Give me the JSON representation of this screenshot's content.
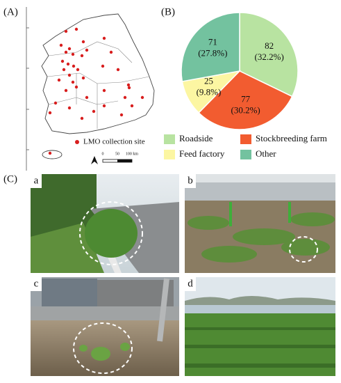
{
  "panels": {
    "a": "(A)",
    "b": "(B)",
    "c": "(C)"
  },
  "map": {
    "legend": "LMO collection site",
    "scale": [
      "0",
      "50",
      "100 km"
    ]
  },
  "chart_data": {
    "type": "pie",
    "categories": [
      "Roadside",
      "Stockbreeding farm",
      "Feed factory",
      "Other"
    ],
    "values": [
      82,
      77,
      25,
      71
    ],
    "percent_labels": [
      "(32.2%)",
      "(30.2%)",
      "(9.8%)",
      "(27.8%)"
    ],
    "colors": [
      "#b8e3a1",
      "#f25c30",
      "#fcf6a2",
      "#73c29f"
    ]
  },
  "photos": [
    "a",
    "b",
    "c",
    "d"
  ]
}
